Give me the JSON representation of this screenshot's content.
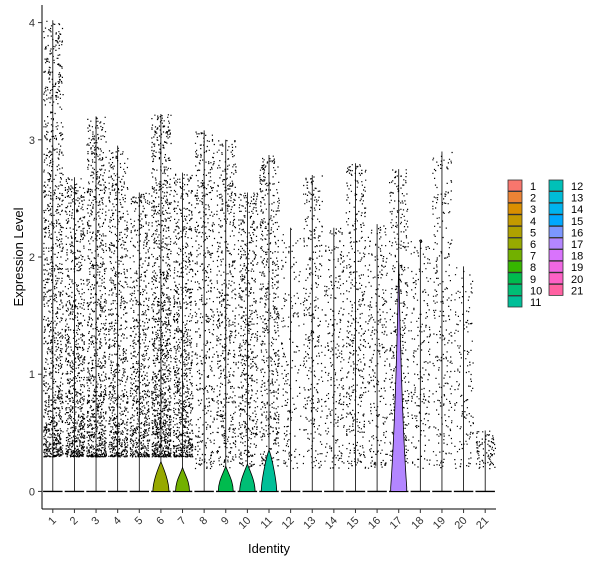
{
  "chart_data": {
    "type": "violin",
    "xlabel": "Identity",
    "ylabel": "Expression Level",
    "ylim": [
      -0.15,
      4.15
    ],
    "yticks": [
      0,
      1,
      2,
      3,
      4
    ],
    "jitter_points": true,
    "categories": [
      "1",
      "2",
      "3",
      "4",
      "5",
      "6",
      "7",
      "8",
      "9",
      "10",
      "11",
      "12",
      "13",
      "14",
      "15",
      "16",
      "17",
      "18",
      "19",
      "20",
      "21"
    ],
    "colors": [
      "#F8766D",
      "#EB8335",
      "#DA8F00",
      "#C49A00",
      "#AFA100",
      "#97A900",
      "#72B000",
      "#36B600",
      "#00BB4E",
      "#00BE75",
      "#00BF98",
      "#00C0B8",
      "#00BCD7",
      "#00B4EF",
      "#00A8FF",
      "#7C97FF",
      "#B386FF",
      "#D973FC",
      "#F067E2",
      "#FD61C5",
      "#FF61A2"
    ],
    "series": [
      {
        "max": 4.02,
        "density": 0.75,
        "violin_peak": 0.0,
        "violin_width": 0.0
      },
      {
        "max": 2.68,
        "density": 0.55,
        "violin_peak": 0.0,
        "violin_width": 0.0
      },
      {
        "max": 3.2,
        "density": 0.65,
        "violin_peak": 0.0,
        "violin_width": 0.0
      },
      {
        "max": 2.95,
        "density": 0.5,
        "violin_peak": 0.0,
        "violin_width": 0.0
      },
      {
        "max": 2.55,
        "density": 0.45,
        "violin_peak": 0.0,
        "violin_width": 0.0
      },
      {
        "max": 3.22,
        "density": 0.8,
        "violin_peak": 0.22,
        "violin_width": 0.75
      },
      {
        "max": 2.72,
        "density": 0.55,
        "violin_peak": 0.17,
        "violin_width": 0.65
      },
      {
        "max": 3.08,
        "density": 0.3,
        "violin_peak": 0.0,
        "violin_width": 0.0
      },
      {
        "max": 3.0,
        "density": 0.35,
        "violin_peak": 0.18,
        "violin_width": 0.7
      },
      {
        "max": 2.55,
        "density": 0.35,
        "violin_peak": 0.2,
        "violin_width": 0.72
      },
      {
        "max": 2.87,
        "density": 0.35,
        "violin_peak": 0.32,
        "violin_width": 0.72
      },
      {
        "max": 2.25,
        "density": 0.08,
        "violin_peak": 0.0,
        "violin_width": 0.0
      },
      {
        "max": 2.7,
        "density": 0.2,
        "violin_peak": 0.0,
        "violin_width": 0.0
      },
      {
        "max": 2.25,
        "density": 0.15,
        "violin_peak": 0.0,
        "violin_width": 0.0
      },
      {
        "max": 2.8,
        "density": 0.25,
        "violin_peak": 0.0,
        "violin_width": 0.0
      },
      {
        "max": 2.28,
        "density": 0.15,
        "violin_peak": 0.0,
        "violin_width": 0.0
      },
      {
        "max": 2.75,
        "density": 0.25,
        "violin_peak": 1.95,
        "violin_width": 0.75
      },
      {
        "max": 2.15,
        "density": 0.1,
        "violin_peak": 0.0,
        "violin_width": 0.0
      },
      {
        "max": 2.9,
        "density": 0.15,
        "violin_peak": 0.0,
        "violin_width": 0.0
      },
      {
        "max": 1.92,
        "density": 0.06,
        "violin_peak": 0.0,
        "violin_width": 0.0
      },
      {
        "max": 0.52,
        "density": 0.02,
        "violin_peak": 0.0,
        "violin_width": 0.0
      }
    ],
    "legend": {
      "position": "right",
      "columns": [
        [
          "1",
          "2",
          "3",
          "4",
          "5",
          "6",
          "7",
          "8",
          "9",
          "10",
          "11"
        ],
        [
          "12",
          "13",
          "14",
          "15",
          "16",
          "17",
          "18",
          "19",
          "20",
          "21"
        ]
      ]
    }
  }
}
